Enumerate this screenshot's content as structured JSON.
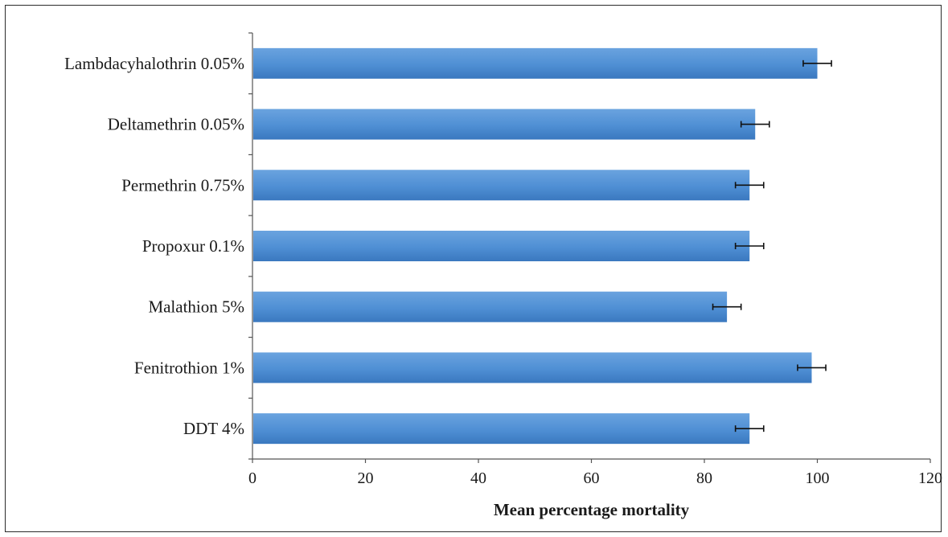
{
  "chart_data": {
    "type": "bar",
    "orientation": "horizontal",
    "categories": [
      "Lambdacyhalothrin 0.05%",
      "Deltamethrin 0.05%",
      "Permethrin 0.75%",
      "Propoxur 0.1%",
      "Malathion 5%",
      "Fenitrothion 1%",
      "DDT 4%"
    ],
    "values": [
      100,
      89,
      88,
      88,
      84,
      99,
      88
    ],
    "errors": [
      2.5,
      2.5,
      2.5,
      2.5,
      2.5,
      2.5,
      2.5
    ],
    "xlabel": "Mean percentage mortality",
    "xlim": [
      0,
      120
    ],
    "xticks": [
      "0",
      "20",
      "40",
      "60",
      "80",
      "100",
      "120"
    ],
    "grid": false,
    "legend": "none",
    "bar_color": "#4f8fd4",
    "bar_color_dark": "#3a78bf"
  }
}
